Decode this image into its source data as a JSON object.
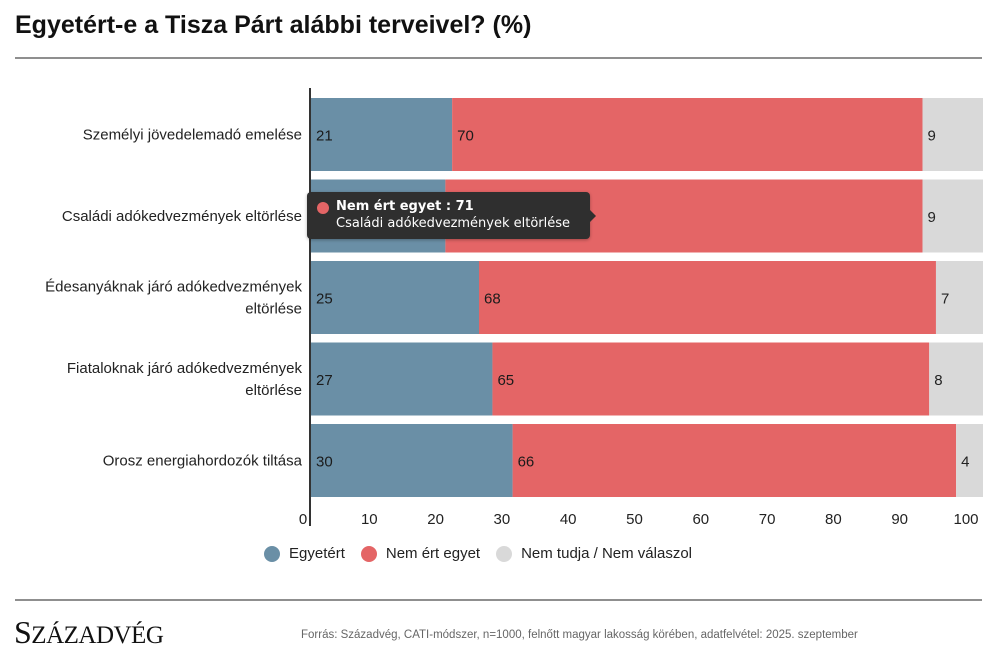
{
  "title": "Egyetért-e a Tisza Párt alábbi terveivel? (%)",
  "colors": {
    "agree": "#6a8fa6",
    "disagree": "#e46566",
    "dontknow": "#d9d9d9"
  },
  "chart_data": {
    "type": "bar",
    "orientation": "horizontal",
    "stacked": true,
    "categories": [
      [
        "Személyi jövedelemadó emelése"
      ],
      [
        "Családi adókedvezmények eltörlése"
      ],
      [
        "Édesanyáknak járó adókedvezmények",
        "eltörlése"
      ],
      [
        "Fiataloknak járó adókedvezmények",
        "eltörlése"
      ],
      [
        "Orosz energiahordozók tiltása"
      ]
    ],
    "series": [
      {
        "name": "Egyetért",
        "color_key": "agree",
        "values": [
          21,
          20,
          25,
          27,
          30
        ],
        "labels": [
          "21",
          "",
          "25",
          "27",
          "30"
        ]
      },
      {
        "name": "Nem ért egyet",
        "color_key": "disagree",
        "values": [
          70,
          71,
          68,
          65,
          66
        ],
        "labels": [
          "70",
          "",
          "68",
          "65",
          "66"
        ]
      },
      {
        "name": "Nem tudja / Nem válaszol",
        "color_key": "dontknow",
        "values": [
          9,
          9,
          7,
          8,
          4
        ],
        "labels": [
          "9",
          "9",
          "7",
          "8",
          "4"
        ]
      }
    ],
    "xticks": [
      "0",
      "10",
      "20",
      "30",
      "40",
      "50",
      "60",
      "70",
      "80",
      "90",
      "100"
    ],
    "xlim": [
      0,
      100
    ],
    "xlabel": "",
    "ylabel": "",
    "grid": false,
    "legend_position": "bottom"
  },
  "legend": [
    {
      "label": "Egyetért",
      "color_key": "agree"
    },
    {
      "label": "Nem ért egyet",
      "color_key": "disagree"
    },
    {
      "label": "Nem tudja / Nem válaszol",
      "color_key": "dontknow"
    }
  ],
  "tooltip": {
    "series_label": "Nem ért egyet : 71",
    "category_label": "Családi adókedvezmények eltörlése"
  },
  "footer": {
    "logo_text": "SZÁZADVÉG",
    "source": "Forrás: Századvég, CATI-módszer, n=1000, felnőtt magyar lakosság körében, adatfelvétel: 2025. szeptember"
  }
}
